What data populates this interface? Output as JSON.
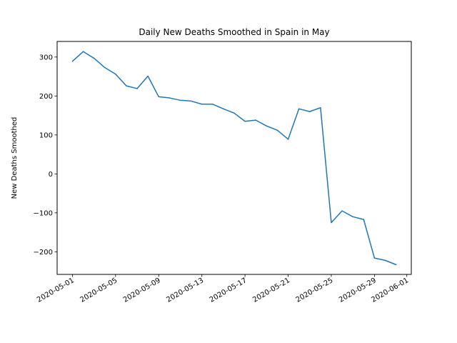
{
  "chart_data": {
    "type": "line",
    "title": "Daily New Deaths Smoothed in Spain in May",
    "xlabel": "",
    "ylabel": "New Deaths Smoothed",
    "x": [
      "2020-05-01",
      "2020-05-02",
      "2020-05-03",
      "2020-05-04",
      "2020-05-05",
      "2020-05-06",
      "2020-05-07",
      "2020-05-08",
      "2020-05-09",
      "2020-05-10",
      "2020-05-11",
      "2020-05-12",
      "2020-05-13",
      "2020-05-14",
      "2020-05-15",
      "2020-05-16",
      "2020-05-17",
      "2020-05-18",
      "2020-05-19",
      "2020-05-20",
      "2020-05-21",
      "2020-05-22",
      "2020-05-23",
      "2020-05-24",
      "2020-05-25",
      "2020-05-26",
      "2020-05-27",
      "2020-05-28",
      "2020-05-29",
      "2020-05-30",
      "2020-05-31"
    ],
    "series": [
      {
        "color": "#1f77b4",
        "values": [
          289,
          314,
          297,
          273,
          256,
          226,
          219,
          251,
          198,
          195,
          189,
          187,
          179,
          179,
          167,
          156,
          135,
          138,
          123,
          112,
          89,
          167,
          160,
          170,
          -125,
          -95,
          -110,
          -117,
          -216,
          -222,
          -233
        ]
      }
    ],
    "xlim": [
      "2020-04-29T14:00",
      "2020-06-01T10:00"
    ],
    "ylim": [
      -258,
      340
    ],
    "xticks": [
      "2020-05-01",
      "2020-05-05",
      "2020-05-09",
      "2020-05-13",
      "2020-05-17",
      "2020-05-21",
      "2020-05-25",
      "2020-05-29",
      "2020-06-01"
    ],
    "yticks": [
      -200,
      -100,
      0,
      100,
      200,
      300
    ],
    "grid": false,
    "legend": "none"
  }
}
